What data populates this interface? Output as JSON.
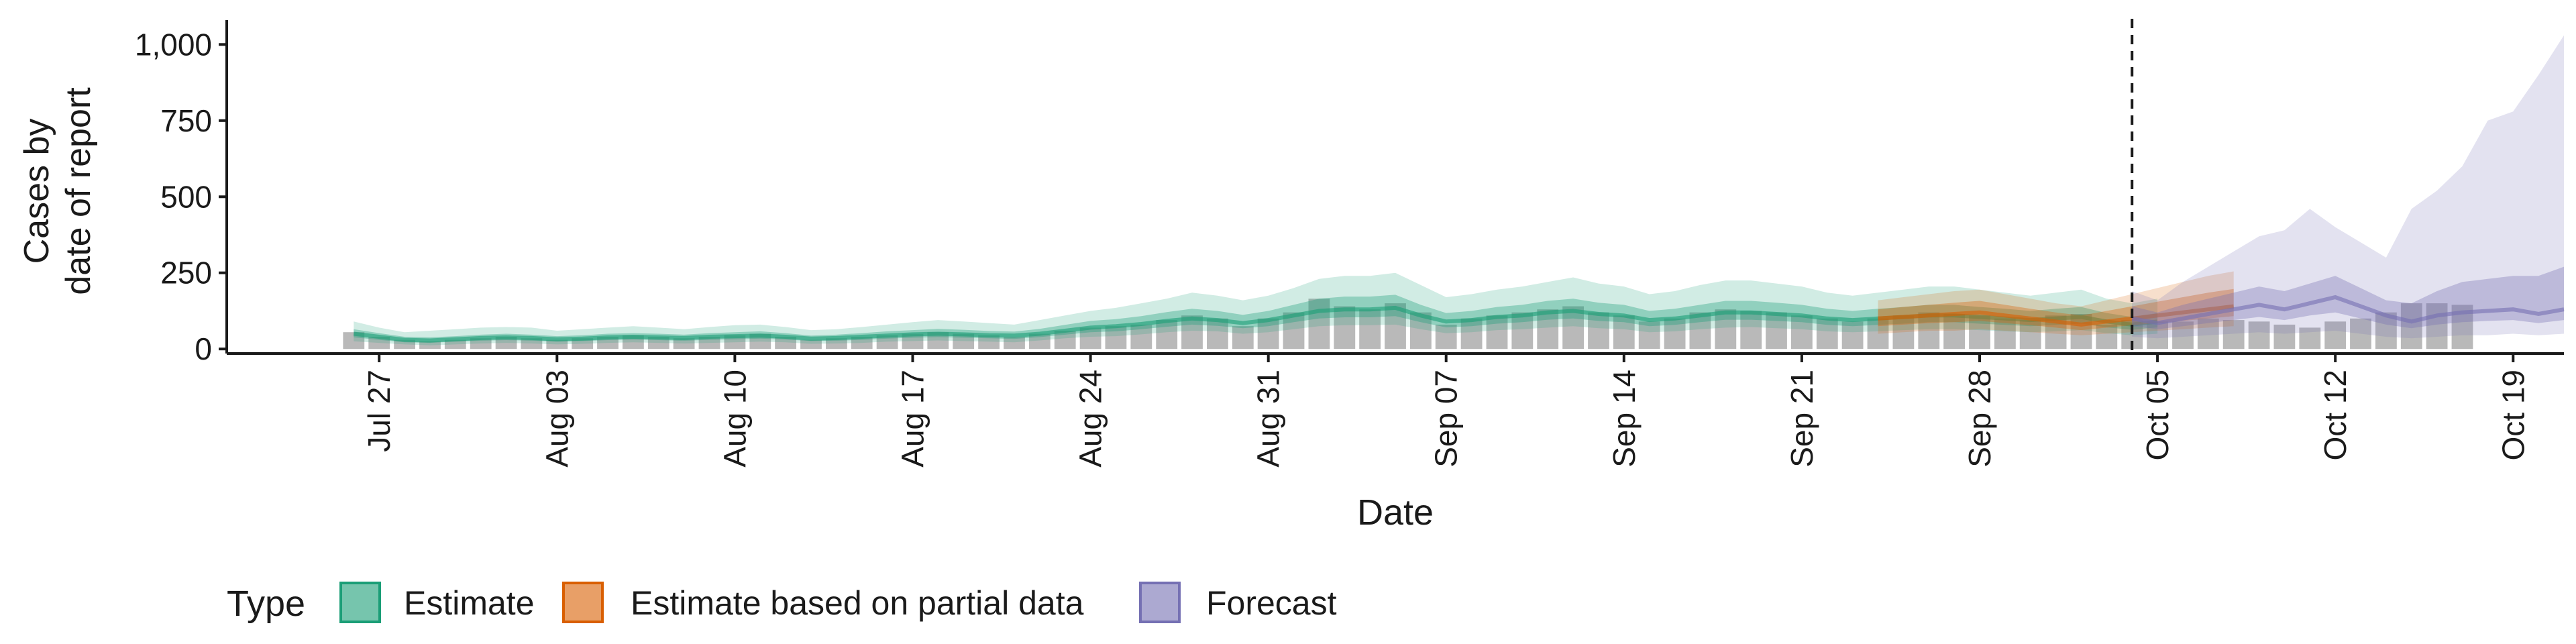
{
  "chart_data": {
    "type": "area",
    "xlabel": "Date",
    "ylabel_lines": [
      "Cases by",
      "date of report"
    ],
    "ylim": [
      -15,
      1080
    ],
    "yticks": [
      {
        "value": 0,
        "label": "0"
      },
      {
        "value": 250,
        "label": "250"
      },
      {
        "value": 500,
        "label": "500"
      },
      {
        "value": 750,
        "label": "750"
      },
      {
        "value": 1000,
        "label": "1,000"
      }
    ],
    "x_start": "2020-07-21",
    "x_end": "2020-10-21",
    "xticks": [
      {
        "date": "2020-07-27",
        "label": "Jul 27"
      },
      {
        "date": "2020-08-03",
        "label": "Aug 03"
      },
      {
        "date": "2020-08-10",
        "label": "Aug 10"
      },
      {
        "date": "2020-08-17",
        "label": "Aug 17"
      },
      {
        "date": "2020-08-24",
        "label": "Aug 24"
      },
      {
        "date": "2020-08-31",
        "label": "Aug 31"
      },
      {
        "date": "2020-09-07",
        "label": "Sep 07"
      },
      {
        "date": "2020-09-14",
        "label": "Sep 14"
      },
      {
        "date": "2020-09-21",
        "label": "Sep 21"
      },
      {
        "date": "2020-09-28",
        "label": "Sep 28"
      },
      {
        "date": "2020-10-05",
        "label": "Oct 05"
      },
      {
        "date": "2020-10-12",
        "label": "Oct 12"
      },
      {
        "date": "2020-10-19",
        "label": "Oct 19"
      }
    ],
    "vline_date": "2020-10-04",
    "legend": {
      "title": "Type",
      "position": "bottom",
      "items": [
        {
          "label": "Estimate",
          "color": "#1b9e77"
        },
        {
          "label": "Estimate based on partial data",
          "color": "#d95f02"
        },
        {
          "label": "Forecast",
          "color": "#7570b3"
        }
      ]
    },
    "observed": {
      "color": "#a8a8a8",
      "start_date": "2020-07-26",
      "values": [
        55,
        40,
        30,
        25,
        30,
        35,
        40,
        35,
        30,
        35,
        40,
        45,
        40,
        35,
        40,
        45,
        50,
        40,
        30,
        35,
        40,
        45,
        50,
        55,
        50,
        45,
        40,
        50,
        60,
        70,
        75,
        80,
        95,
        110,
        100,
        75,
        100,
        120,
        165,
        140,
        130,
        150,
        120,
        80,
        100,
        110,
        120,
        130,
        140,
        120,
        110,
        90,
        100,
        120,
        130,
        125,
        120,
        110,
        100,
        90,
        100,
        110,
        120,
        115,
        110,
        100,
        95,
        110,
        115,
        80,
        95,
        90,
        90,
        100,
        95,
        90,
        80,
        70,
        90,
        100,
        120,
        150,
        150,
        145
      ]
    },
    "series": [
      {
        "name": "Estimate",
        "color": "#1b9e77",
        "start_date": "2020-07-26",
        "median": [
          50,
          40,
          30,
          28,
          32,
          36,
          38,
          36,
          32,
          34,
          38,
          40,
          38,
          36,
          40,
          42,
          44,
          40,
          34,
          36,
          40,
          44,
          48,
          50,
          48,
          45,
          44,
          50,
          60,
          70,
          75,
          82,
          92,
          100,
          95,
          85,
          95,
          110,
          125,
          130,
          130,
          135,
          110,
          90,
          95,
          105,
          110,
          120,
          125,
          115,
          110,
          95,
          100,
          110,
          120,
          120,
          115,
          110,
          100,
          95,
          100,
          105,
          110,
          110,
          105,
          100,
          95,
          100,
          105,
          90,
          80,
          90
        ],
        "lower90": [
          25,
          20,
          15,
          12,
          15,
          18,
          20,
          18,
          15,
          17,
          20,
          22,
          20,
          18,
          20,
          22,
          24,
          22,
          17,
          18,
          20,
          24,
          26,
          28,
          26,
          24,
          22,
          28,
          35,
          40,
          42,
          48,
          55,
          60,
          58,
          50,
          55,
          65,
          75,
          78,
          78,
          80,
          65,
          52,
          55,
          62,
          65,
          70,
          75,
          68,
          65,
          55,
          58,
          65,
          70,
          72,
          68,
          65,
          58,
          55,
          58,
          62,
          65,
          65,
          62,
          58,
          55,
          58,
          62,
          52,
          45,
          50
        ],
        "upper90": [
          90,
          70,
          55,
          60,
          65,
          70,
          72,
          70,
          60,
          65,
          70,
          75,
          70,
          65,
          72,
          78,
          80,
          72,
          62,
          65,
          72,
          80,
          88,
          95,
          90,
          85,
          80,
          95,
          110,
          125,
          135,
          150,
          165,
          185,
          175,
          160,
          175,
          200,
          230,
          240,
          240,
          250,
          210,
          170,
          180,
          195,
          205,
          220,
          235,
          215,
          205,
          180,
          190,
          210,
          225,
          225,
          215,
          205,
          185,
          175,
          185,
          195,
          205,
          205,
          195,
          185,
          175,
          185,
          195,
          165,
          150,
          165
        ],
        "lower50": [
          38,
          30,
          22,
          20,
          24,
          27,
          29,
          27,
          24,
          26,
          29,
          31,
          29,
          27,
          30,
          32,
          34,
          31,
          26,
          27,
          30,
          34,
          37,
          39,
          37,
          35,
          33,
          39,
          47,
          55,
          58,
          65,
          73,
          80,
          76,
          68,
          75,
          88,
          100,
          104,
          104,
          108,
          88,
          71,
          75,
          83,
          88,
          96,
          100,
          92,
          88,
          75,
          79,
          88,
          96,
          96,
          92,
          88,
          79,
          75,
          79,
          83,
          88,
          88,
          83,
          79,
          75,
          79,
          83,
          71,
          63,
          71
        ],
        "upper50": [
          65,
          52,
          40,
          38,
          42,
          47,
          50,
          47,
          42,
          45,
          50,
          52,
          50,
          47,
          52,
          55,
          58,
          52,
          44,
          47,
          52,
          58,
          62,
          66,
          63,
          59,
          57,
          66,
          79,
          92,
          98,
          108,
          121,
          132,
          125,
          112,
          125,
          145,
          165,
          172,
          172,
          178,
          145,
          118,
          125,
          138,
          145,
          158,
          165,
          152,
          145,
          125,
          132,
          145,
          158,
          158,
          152,
          145,
          132,
          125,
          132,
          138,
          145,
          145,
          138,
          132,
          125,
          132,
          138,
          118,
          105,
          118
        ]
      },
      {
        "name": "Estimate based on partial data",
        "color": "#d95f02",
        "start_date": "2020-09-24",
        "median": [
          100,
          105,
          110,
          115,
          120,
          110,
          100,
          90,
          80,
          90,
          100,
          110,
          120,
          130,
          140
        ],
        "lower90": [
          50,
          55,
          60,
          60,
          65,
          60,
          55,
          50,
          45,
          50,
          55,
          60,
          65,
          70,
          75
        ],
        "upper90": [
          160,
          170,
          180,
          190,
          195,
          180,
          165,
          150,
          140,
          160,
          180,
          200,
          220,
          240,
          255
        ],
        "lower50": [
          75,
          80,
          85,
          88,
          92,
          85,
          78,
          70,
          62,
          70,
          78,
          85,
          92,
          100,
          108
        ],
        "upper50": [
          130,
          138,
          145,
          152,
          158,
          145,
          132,
          120,
          110,
          125,
          140,
          155,
          170,
          185,
          197
        ]
      },
      {
        "name": "Forecast",
        "color": "#7570b3",
        "start_date": "2020-10-04",
        "median": [
          100,
          85,
          100,
          115,
          130,
          145,
          130,
          150,
          170,
          140,
          110,
          90,
          110,
          120,
          125,
          130,
          115,
          130
        ],
        "lower90": [
          40,
          35,
          40,
          45,
          50,
          55,
          50,
          55,
          60,
          50,
          40,
          35,
          40,
          45,
          45,
          50,
          45,
          50
        ],
        "upper90": [
          190,
          160,
          220,
          270,
          320,
          370,
          390,
          460,
          400,
          350,
          300,
          460,
          520,
          600,
          750,
          780,
          900,
          1030
        ],
        "lower50": [
          75,
          65,
          75,
          85,
          95,
          105,
          95,
          110,
          120,
          100,
          80,
          68,
          80,
          88,
          92,
          95,
          85,
          95
        ],
        "upper50": [
          140,
          120,
          145,
          165,
          185,
          205,
          190,
          215,
          240,
          200,
          160,
          150,
          190,
          220,
          230,
          240,
          240,
          270
        ]
      }
    ]
  }
}
